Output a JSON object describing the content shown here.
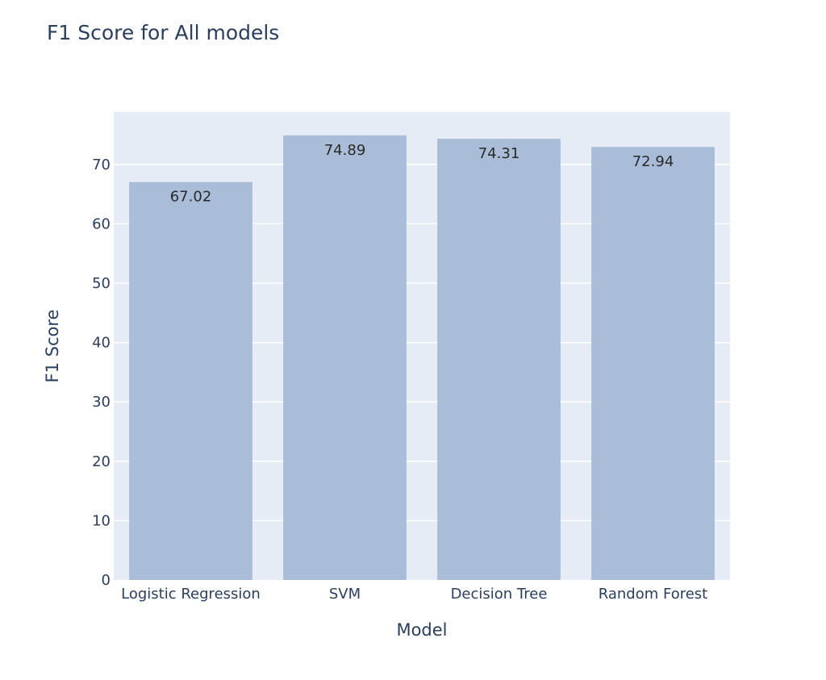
{
  "chart_data": {
    "type": "bar",
    "title": "F1 Score for All models",
    "xlabel": "Model",
    "ylabel": "F1 Score",
    "categories": [
      "Logistic Regression",
      "SVM",
      "Decision Tree",
      "Random Forest"
    ],
    "values": [
      67.02,
      74.89,
      74.31,
      72.94
    ],
    "data_labels": [
      "67.02",
      "74.89",
      "74.31",
      "72.94"
    ],
    "ylim": [
      0,
      78.8
    ],
    "yticks": [
      0,
      10,
      20,
      30,
      40,
      50,
      60,
      70
    ],
    "ytick_labels": [
      "0",
      "10",
      "20",
      "30",
      "40",
      "50",
      "60",
      "70"
    ],
    "grid": true,
    "legend": "none",
    "colors": {
      "bar": "#a9bdd9",
      "plot_background": "#e5ecf6",
      "grid": "#ffffff",
      "text": "#2a3f5f"
    }
  }
}
